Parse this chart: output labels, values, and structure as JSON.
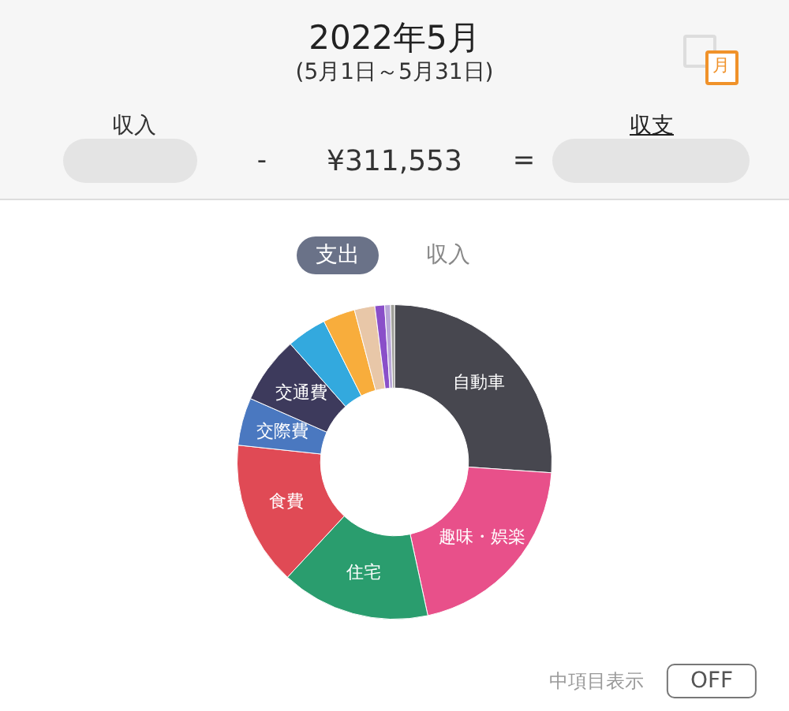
{
  "chart_data": {
    "type": "donut",
    "title": "2022年5月",
    "subtitle": "(5月1日～5月31日)",
    "categories": [
      "自動車",
      "趣味・娯楽",
      "住宅",
      "食費",
      "交際費",
      "交通費",
      null,
      null,
      null,
      null,
      null,
      null
    ],
    "values": [
      26.1,
      20.5,
      15.3,
      14.8,
      4.9,
      6.9,
      4.1,
      3.3,
      2.1,
      1.0,
      0.6,
      0.4
    ],
    "colors": [
      "#47474f",
      "#e8508a",
      "#2a9d6e",
      "#e04a55",
      "#4a78c0",
      "#3d3a5c",
      "#33a9de",
      "#f8ad3c",
      "#e8c7a8",
      "#8a4fc9",
      "#b8a6d8",
      "#a0a09a"
    ],
    "annotations": [
      "収入",
      "-",
      "¥311,553",
      "=",
      "収支",
      "支出",
      "収入",
      "中項目表示",
      "OFF",
      "月"
    ],
    "legend": false
  }
}
